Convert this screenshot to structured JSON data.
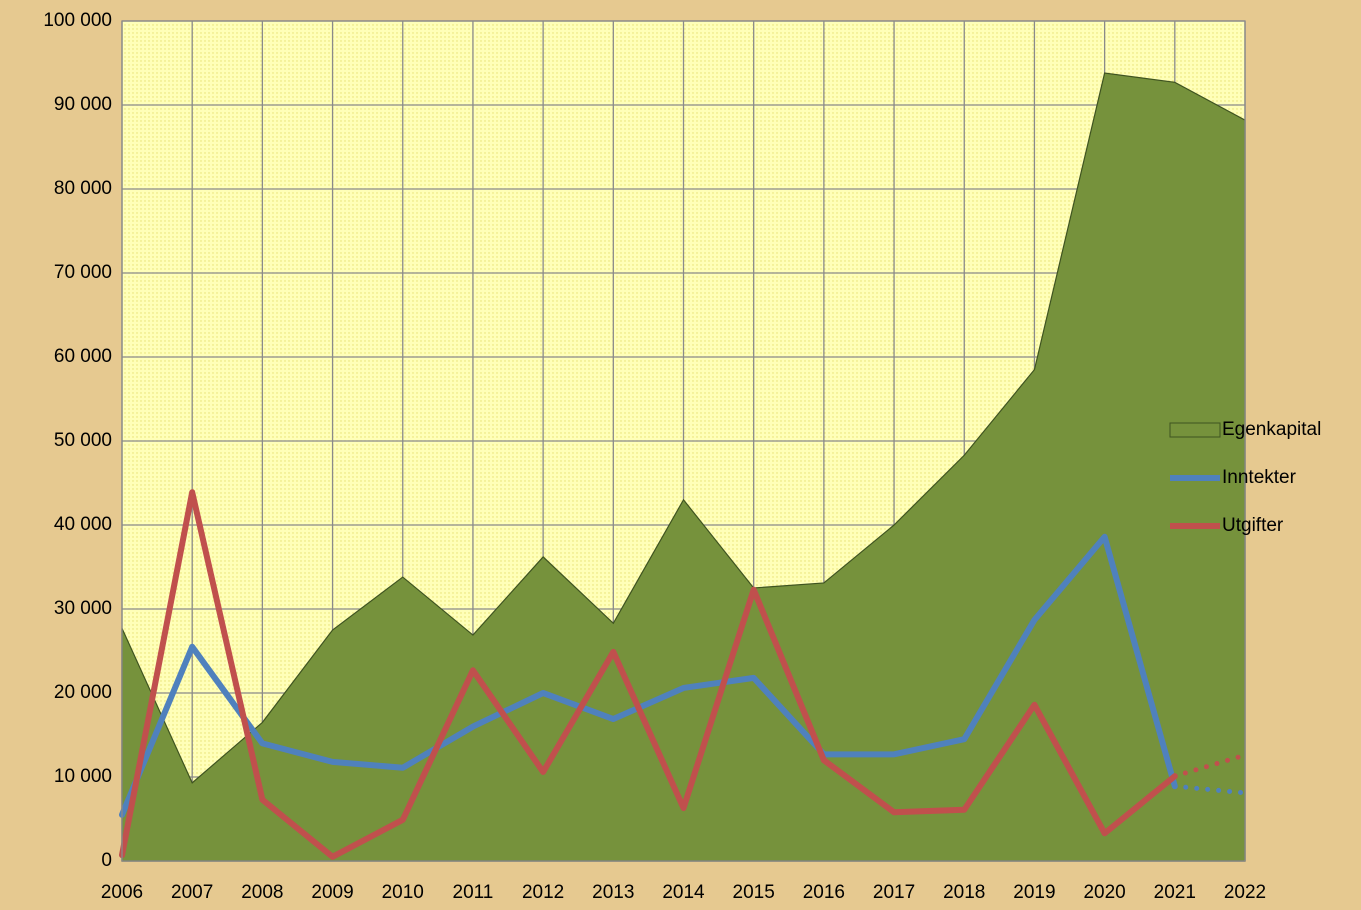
{
  "chart_data": {
    "type": "area-line",
    "x": [
      2006,
      2007,
      2008,
      2009,
      2010,
      2011,
      2012,
      2013,
      2014,
      2015,
      2016,
      2017,
      2018,
      2019,
      2020,
      2021,
      2022
    ],
    "xlim": [
      2006,
      2022
    ],
    "xticks": [
      2006,
      2007,
      2008,
      2009,
      2010,
      2011,
      2012,
      2013,
      2014,
      2015,
      2016,
      2017,
      2018,
      2019,
      2020,
      2021,
      2022
    ],
    "ylim": [
      0,
      100000
    ],
    "yticks": [
      0,
      {
        "value": 10000,
        "label": "10 000"
      },
      {
        "value": 20000,
        "label": "20 000"
      },
      {
        "value": 30000,
        "label": "30 000"
      },
      {
        "value": 40000,
        "label": "40 000"
      },
      {
        "value": 50000,
        "label": "50 000"
      },
      {
        "value": 60000,
        "label": "60 000"
      },
      {
        "value": 70000,
        "label": "70 000"
      },
      {
        "value": 80000,
        "label": "80 000"
      },
      {
        "value": 90000,
        "label": "90 000"
      },
      {
        "value": 100000,
        "label": "100 000"
      }
    ],
    "grid": true,
    "legend": "right",
    "dotted_after": 2021,
    "series": [
      {
        "name": "Egenkapital",
        "kind": "area",
        "color": "#76923c",
        "values": [
          27700,
          9300,
          16500,
          27500,
          33800,
          26900,
          36200,
          28300,
          43000,
          32500,
          33100,
          40000,
          48300,
          58500,
          93800,
          92700,
          88200
        ]
      },
      {
        "name": "Inntekter",
        "kind": "line",
        "color": "#4f81bd",
        "values": [
          5500,
          25500,
          14000,
          11800,
          11100,
          16000,
          20000,
          16900,
          20600,
          21800,
          12700,
          12700,
          14500,
          28700,
          38600,
          8900,
          8100
        ]
      },
      {
        "name": "Utgifter",
        "kind": "line",
        "color": "#c0504d",
        "values": [
          700,
          43900,
          7300,
          500,
          4900,
          22700,
          10600,
          24900,
          6300,
          32300,
          12000,
          5800,
          6100,
          18600,
          3300,
          10100,
          12600
        ]
      }
    ]
  }
}
